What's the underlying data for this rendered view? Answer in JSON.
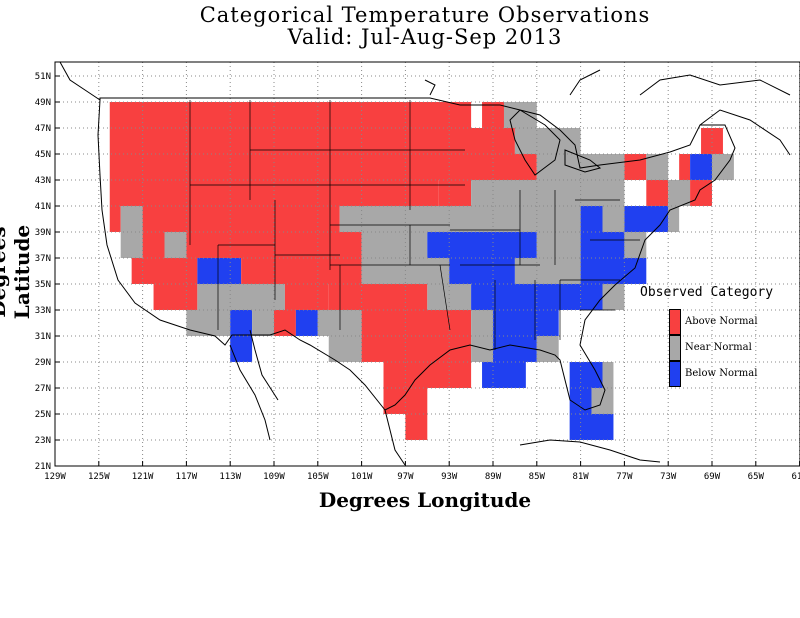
{
  "title": {
    "line1": "Categorical Temperature Observations",
    "line2": "Valid: Jul-Aug-Sep 2013"
  },
  "axes": {
    "xlabel": "Degrees Longitude",
    "ylabel": "Degrees Latitude",
    "xticks": [
      "129W",
      "125W",
      "121W",
      "117W",
      "113W",
      "109W",
      "105W",
      "101W",
      "97W",
      "93W",
      "89W",
      "85W",
      "81W",
      "77W",
      "73W",
      "69W",
      "65W",
      "61W"
    ],
    "yticks": [
      "21N",
      "23N",
      "25N",
      "27N",
      "29N",
      "31N",
      "33N",
      "35N",
      "37N",
      "39N",
      "41N",
      "43N",
      "45N",
      "47N",
      "49N",
      "51N"
    ]
  },
  "legend": {
    "title": "Observed Category",
    "items": [
      {
        "label": "Above Normal",
        "color": "#f84040"
      },
      {
        "label": "Near Normal",
        "color": "#a8a8a8"
      },
      {
        "label": "Below Normal",
        "color": "#2040f0"
      }
    ]
  },
  "colors": {
    "A": "#f84040",
    "N": "#a8a8a8",
    "B": "#2040f0"
  },
  "chart_data": {
    "type": "heatmap",
    "cell_size_degrees": 2,
    "lon_range": [
      -129,
      -61
    ],
    "lat_range": [
      21,
      52
    ],
    "row_order": "north_to_south",
    "rows": [
      {
        "lat": 48,
        "cells": [
          [
            -124,
            -91,
            "A"
          ],
          [
            -90,
            -87,
            "A"
          ],
          [
            -88,
            -85,
            "N"
          ]
        ]
      },
      {
        "lat": 46,
        "cells": [
          [
            -124,
            -87,
            "A"
          ],
          [
            -87,
            -81,
            "N"
          ],
          [
            -70,
            -68,
            "A"
          ]
        ]
      },
      {
        "lat": 44,
        "cells": [
          [
            -124,
            -85,
            "A"
          ],
          [
            -85,
            -77,
            "N"
          ],
          [
            -77,
            -75,
            "A"
          ],
          [
            -75,
            -73,
            "N"
          ],
          [
            -72,
            -71,
            "A"
          ],
          [
            -71,
            -69,
            "B"
          ],
          [
            -69,
            -67,
            "N"
          ]
        ]
      },
      {
        "lat": 42,
        "cells": [
          [
            -124,
            -94,
            "A"
          ],
          [
            -94,
            -91,
            "A"
          ],
          [
            -91,
            -77,
            "N"
          ],
          [
            -75,
            -73,
            "A"
          ],
          [
            -73,
            -71,
            "N"
          ],
          [
            -71,
            -69,
            "A"
          ]
        ]
      },
      {
        "lat": 40,
        "cells": [
          [
            -124,
            -123,
            "A"
          ],
          [
            -123,
            -121,
            "N"
          ],
          [
            -121,
            -103,
            "A"
          ],
          [
            -103,
            -81,
            "N"
          ],
          [
            -81,
            -79,
            "B"
          ],
          [
            -79,
            -77,
            "N"
          ],
          [
            -77,
            -73,
            "B"
          ],
          [
            -73,
            -72,
            "N"
          ]
        ]
      },
      {
        "lat": 38,
        "cells": [
          [
            -123,
            -121,
            "N"
          ],
          [
            -121,
            -119,
            "A"
          ],
          [
            -119,
            -117,
            "N"
          ],
          [
            -117,
            -101,
            "A"
          ],
          [
            -101,
            -95,
            "N"
          ],
          [
            -95,
            -85,
            "B"
          ],
          [
            -85,
            -81,
            "N"
          ],
          [
            -81,
            -77,
            "B"
          ],
          [
            -77,
            -75,
            "N"
          ]
        ]
      },
      {
        "lat": 36,
        "cells": [
          [
            -122,
            -116,
            "A"
          ],
          [
            -116,
            -112,
            "B"
          ],
          [
            -112,
            -101,
            "A"
          ],
          [
            -101,
            -93,
            "N"
          ],
          [
            -93,
            -87,
            "B"
          ],
          [
            -87,
            -81,
            "N"
          ],
          [
            -81,
            -75,
            "B"
          ]
        ]
      },
      {
        "lat": 34,
        "cells": [
          [
            -120,
            -116,
            "A"
          ],
          [
            -116,
            -108,
            "N"
          ],
          [
            -108,
            -104,
            "A"
          ],
          [
            -104,
            -95,
            "A"
          ],
          [
            -95,
            -91,
            "N"
          ],
          [
            -91,
            -79,
            "B"
          ],
          [
            -79,
            -77,
            "N"
          ]
        ]
      },
      {
        "lat": 32,
        "cells": [
          [
            -117,
            -113,
            "N"
          ],
          [
            -113,
            -111,
            "B"
          ],
          [
            -111,
            -109,
            "N"
          ],
          [
            -109,
            -107,
            "A"
          ],
          [
            -107,
            -105,
            "B"
          ],
          [
            -105,
            -101,
            "N"
          ],
          [
            -101,
            -91,
            "A"
          ],
          [
            -91,
            -89,
            "N"
          ],
          [
            -89,
            -83,
            "B"
          ]
        ]
      },
      {
        "lat": 30,
        "cells": [
          [
            -113,
            -111,
            "B"
          ],
          [
            -104,
            -101,
            "N"
          ],
          [
            -101,
            -91,
            "A"
          ],
          [
            -91,
            -89,
            "N"
          ],
          [
            -89,
            -85,
            "B"
          ],
          [
            -85,
            -83,
            "N"
          ]
        ]
      },
      {
        "lat": 28,
        "cells": [
          [
            -99,
            -91,
            "A"
          ],
          [
            -90,
            -86,
            "B"
          ],
          [
            -82,
            -79,
            "B"
          ],
          [
            -79,
            -78,
            "N"
          ]
        ]
      },
      {
        "lat": 26,
        "cells": [
          [
            -99,
            -95,
            "A"
          ],
          [
            -82,
            -80,
            "B"
          ],
          [
            -80,
            -78,
            "N"
          ]
        ]
      },
      {
        "lat": 24,
        "cells": [
          [
            -97,
            -95,
            "A"
          ],
          [
            -82,
            -78,
            "B"
          ]
        ]
      }
    ]
  }
}
